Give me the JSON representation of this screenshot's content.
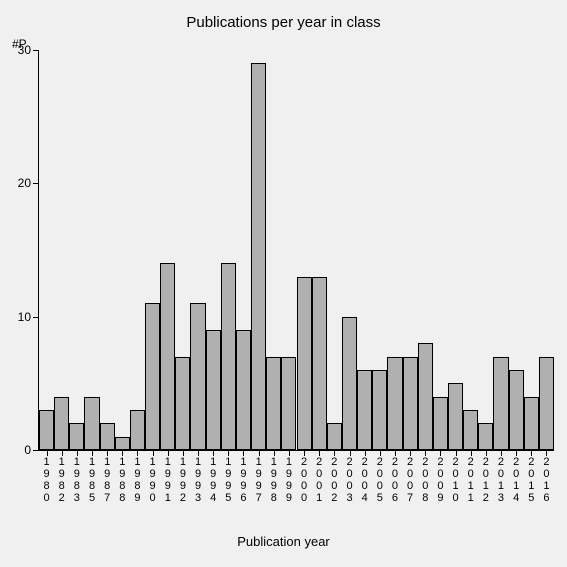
{
  "chart": {
    "type": "bar",
    "title": "Publications per year in class",
    "title_fontsize": 15,
    "y_axis_label": "#P",
    "x_axis_label": "Publication year",
    "label_fontsize": 13,
    "background_color": "#f0f0f0",
    "bar_fill_color": "#b0b0b0",
    "bar_border_color": "#000000",
    "axis_color": "#000000",
    "text_color": "#000000",
    "tick_fontsize": 12,
    "x_tick_fontsize": 11,
    "ylim": [
      0,
      30
    ],
    "yticks": [
      0,
      10,
      20,
      30
    ],
    "bar_width": 1.0,
    "categories": [
      "1980",
      "1982",
      "1983",
      "1985",
      "1987",
      "1988",
      "1989",
      "1990",
      "1991",
      "1992",
      "1993",
      "1994",
      "1995",
      "1996",
      "1997",
      "1998",
      "1999",
      "2000",
      "2001",
      "2002",
      "2003",
      "2004",
      "2005",
      "2006",
      "2007",
      "2008",
      "2009",
      "2010",
      "2011",
      "2012",
      "2013",
      "2014",
      "2015",
      "2016"
    ],
    "values": [
      3,
      4,
      2,
      4,
      2,
      1,
      3,
      11,
      14,
      7,
      11,
      9,
      14,
      9,
      29,
      7,
      7,
      13,
      13,
      2,
      10,
      6,
      6,
      7,
      7,
      8,
      4,
      5,
      3,
      2,
      7,
      6,
      4,
      7
    ]
  }
}
